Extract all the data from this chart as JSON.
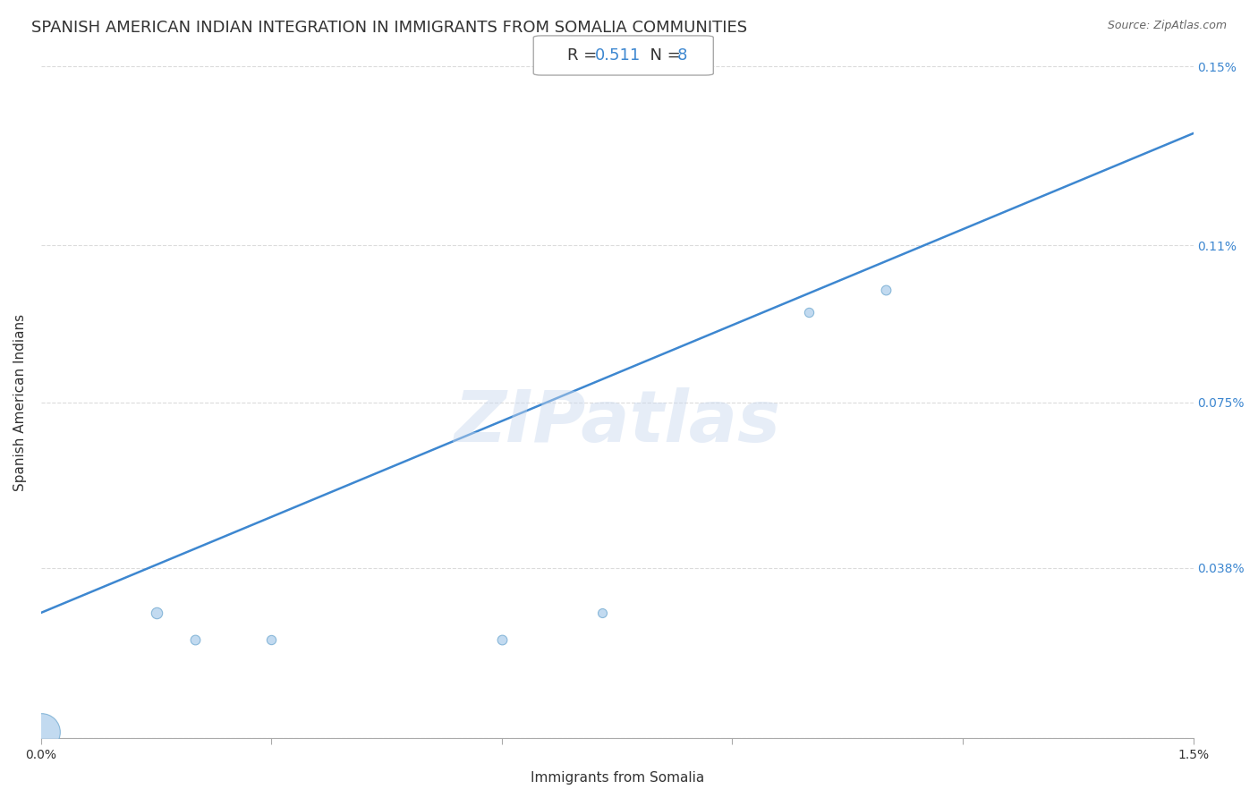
{
  "title": "SPANISH AMERICAN INDIAN INTEGRATION IN IMMIGRANTS FROM SOMALIA COMMUNITIES",
  "source": "Source: ZipAtlas.com",
  "xlabel": "Immigrants from Somalia",
  "ylabel": "Spanish American Indians",
  "R": 0.511,
  "N": 8,
  "point_color": "#b8d4ee",
  "point_edge_color": "#7aafd4",
  "line_color": "#3d87d0",
  "xlim": [
    0.0,
    0.015
  ],
  "ylim": [
    0.0,
    0.0015
  ],
  "xtick_pos": [
    0.0,
    0.003,
    0.006,
    0.009,
    0.012,
    0.015
  ],
  "xtick_labels": [
    "0.0%",
    "",
    "",
    "",
    "",
    "1.5%"
  ],
  "ytick_pos": [
    0.0,
    0.00038,
    0.00075,
    0.0011,
    0.0015
  ],
  "ytick_labels": [
    "",
    "0.038%",
    "0.075%",
    "0.11%",
    "0.15%"
  ],
  "grid_color": "#cccccc",
  "watermark_text": "ZIPatlas",
  "background_color": "#ffffff",
  "title_fontsize": 13,
  "axis_label_fontsize": 11,
  "tick_fontsize": 10,
  "annotation_color": "#3d87d0",
  "text_color": "#333333",
  "scatter_x": [
    0.0,
    0.0015,
    0.002,
    0.003,
    0.006,
    0.0073,
    0.01,
    0.011
  ],
  "scatter_y": [
    1.5e-05,
    0.00028,
    0.00022,
    0.00022,
    0.00022,
    0.00028,
    0.00095,
    0.001
  ],
  "scatter_sizes": [
    900,
    80,
    60,
    55,
    60,
    52,
    55,
    60
  ],
  "line_x0": 0.0,
  "line_y0": 0.00028,
  "line_x1": 0.015,
  "line_y1": 0.00135
}
